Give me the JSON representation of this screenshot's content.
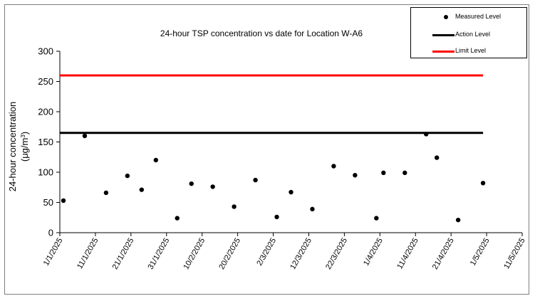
{
  "chart_data": {
    "type": "scatter",
    "title": "24-hour TSP concentration vs date for Location W-A6",
    "ylabel_line1": "24-hour concentration",
    "ylabel_line2_base": "(μg/m",
    "ylabel_line2_sup": "3",
    "ylabel_line2_close": ")",
    "ylim": [
      0,
      300
    ],
    "yticks": [
      0,
      50,
      100,
      150,
      200,
      250,
      300
    ],
    "xlim": [
      "2025-01-01",
      "2025-05-11"
    ],
    "xticks": [
      {
        "date": "2025-01-01",
        "label": "1/1/2025"
      },
      {
        "date": "2025-01-11",
        "label": "11/1/2025"
      },
      {
        "date": "2025-01-21",
        "label": "21/1/2025"
      },
      {
        "date": "2025-01-31",
        "label": "31/1/2025"
      },
      {
        "date": "2025-02-10",
        "label": "10/2/2025"
      },
      {
        "date": "2025-02-20",
        "label": "20/2/2025"
      },
      {
        "date": "2025-03-02",
        "label": "2/3/2025"
      },
      {
        "date": "2025-03-12",
        "label": "12/3/2025"
      },
      {
        "date": "2025-03-22",
        "label": "22/3/2025"
      },
      {
        "date": "2025-04-01",
        "label": "1/4/2025"
      },
      {
        "date": "2025-04-11",
        "label": "11/4/2025"
      },
      {
        "date": "2025-04-21",
        "label": "21/4/2025"
      },
      {
        "date": "2025-05-01",
        "label": "1/5/2025"
      },
      {
        "date": "2025-05-11",
        "label": "11/5/2025"
      }
    ],
    "series": [
      {
        "name": "Measured Level",
        "style": "points",
        "color": "#000000",
        "points": [
          {
            "x": "2025-01-02",
            "y": 53
          },
          {
            "x": "2025-01-08",
            "y": 160
          },
          {
            "x": "2025-01-14",
            "y": 66
          },
          {
            "x": "2025-01-20",
            "y": 94
          },
          {
            "x": "2025-01-24",
            "y": 71
          },
          {
            "x": "2025-01-28",
            "y": 120
          },
          {
            "x": "2025-02-03",
            "y": 24
          },
          {
            "x": "2025-02-07",
            "y": 81
          },
          {
            "x": "2025-02-13",
            "y": 76
          },
          {
            "x": "2025-02-19",
            "y": 43
          },
          {
            "x": "2025-02-25",
            "y": 87
          },
          {
            "x": "2025-03-03",
            "y": 26
          },
          {
            "x": "2025-03-07",
            "y": 67
          },
          {
            "x": "2025-03-13",
            "y": 39
          },
          {
            "x": "2025-03-19",
            "y": 110
          },
          {
            "x": "2025-03-25",
            "y": 95
          },
          {
            "x": "2025-03-31",
            "y": 24
          },
          {
            "x": "2025-04-02",
            "y": 99
          },
          {
            "x": "2025-04-08",
            "y": 99
          },
          {
            "x": "2025-04-14",
            "y": 163
          },
          {
            "x": "2025-04-17",
            "y": 124
          },
          {
            "x": "2025-04-23",
            "y": 21
          },
          {
            "x": "2025-04-30",
            "y": 82
          }
        ]
      },
      {
        "name": "Action Level",
        "style": "line",
        "color": "#000000",
        "points": [
          {
            "x": "2025-01-01",
            "y": 165
          },
          {
            "x": "2025-04-30",
            "y": 165
          }
        ]
      },
      {
        "name": "Limit Level",
        "style": "line",
        "color": "#ff0000",
        "points": [
          {
            "x": "2025-01-01",
            "y": 260
          },
          {
            "x": "2025-04-30",
            "y": 260
          }
        ]
      }
    ],
    "legend_position": "top-right",
    "grid": false
  }
}
